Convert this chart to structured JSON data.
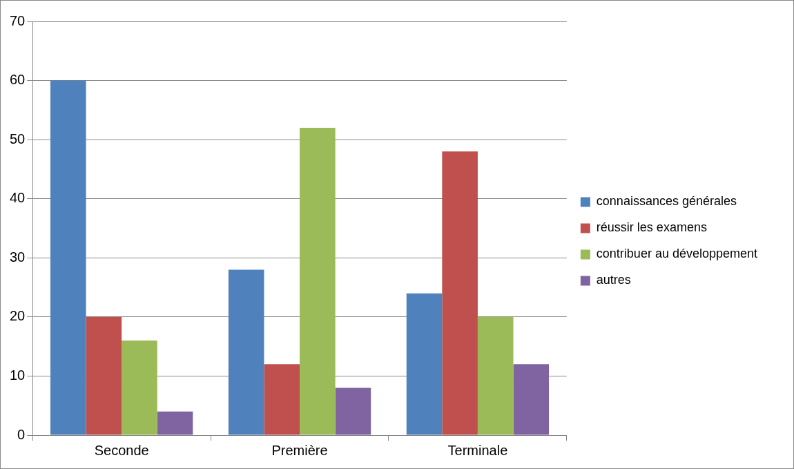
{
  "chart_data": {
    "type": "bar",
    "categories": [
      "Seconde",
      "Première",
      "Terminale"
    ],
    "series": [
      {
        "name": "connaissances générales",
        "color": "#4f81bd",
        "values": [
          60,
          28,
          24
        ]
      },
      {
        "name": "réussir les examens",
        "color": "#c0504d",
        "values": [
          20,
          12,
          48
        ]
      },
      {
        "name": "contribuer au développement",
        "color": "#9bbb59",
        "values": [
          16,
          52,
          20
        ]
      },
      {
        "name": "autres",
        "color": "#8064a2",
        "values": [
          4,
          8,
          12
        ]
      }
    ],
    "ylim": [
      0,
      70
    ],
    "yticks": [
      0,
      10,
      20,
      30,
      40,
      50,
      60,
      70
    ],
    "grid": "y",
    "legend": "right"
  }
}
